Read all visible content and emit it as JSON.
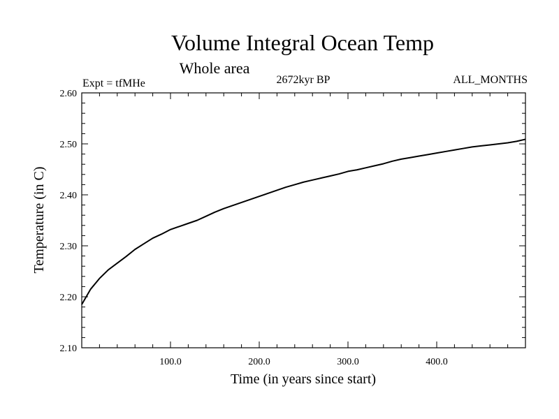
{
  "chart_data": {
    "type": "line",
    "title": "Volume Integral Ocean Temp",
    "subtitle": "Whole area",
    "annotations": {
      "experiment": "Expt = tfMHe",
      "period": "2672kyr BP",
      "months": "ALL_MONTHS"
    },
    "xlabel": "Time (in years since start)",
    "ylabel": "Temperature (in C)",
    "xlim": [
      0,
      500
    ],
    "ylim": [
      2.1,
      2.6
    ],
    "xticks": [
      100,
      200,
      300,
      400
    ],
    "xtick_labels": [
      "100.0",
      "200.0",
      "300.0",
      "400.0"
    ],
    "yticks": [
      2.1,
      2.2,
      2.3,
      2.4,
      2.5,
      2.6
    ],
    "ytick_labels": [
      "2.10",
      "2.20",
      "2.30",
      "2.40",
      "2.50",
      "2.60"
    ],
    "grid": false,
    "series": [
      {
        "name": "Volume Integral Ocean Temp",
        "x": [
          0,
          10,
          20,
          30,
          40,
          50,
          60,
          70,
          80,
          90,
          100,
          110,
          120,
          130,
          140,
          150,
          160,
          170,
          180,
          190,
          200,
          210,
          220,
          230,
          240,
          250,
          260,
          270,
          280,
          290,
          300,
          310,
          320,
          330,
          340,
          350,
          360,
          370,
          380,
          390,
          400,
          410,
          420,
          430,
          440,
          450,
          460,
          470,
          480,
          490,
          500
        ],
        "values": [
          2.185,
          2.215,
          2.236,
          2.253,
          2.266,
          2.279,
          2.293,
          2.304,
          2.315,
          2.323,
          2.332,
          2.338,
          2.344,
          2.35,
          2.358,
          2.366,
          2.373,
          2.379,
          2.385,
          2.391,
          2.397,
          2.403,
          2.409,
          2.415,
          2.42,
          2.425,
          2.429,
          2.433,
          2.437,
          2.441,
          2.446,
          2.449,
          2.453,
          2.457,
          2.461,
          2.466,
          2.47,
          2.473,
          2.476,
          2.479,
          2.482,
          2.485,
          2.488,
          2.491,
          2.494,
          2.496,
          2.498,
          2.5,
          2.502,
          2.505,
          2.509
        ]
      }
    ]
  }
}
